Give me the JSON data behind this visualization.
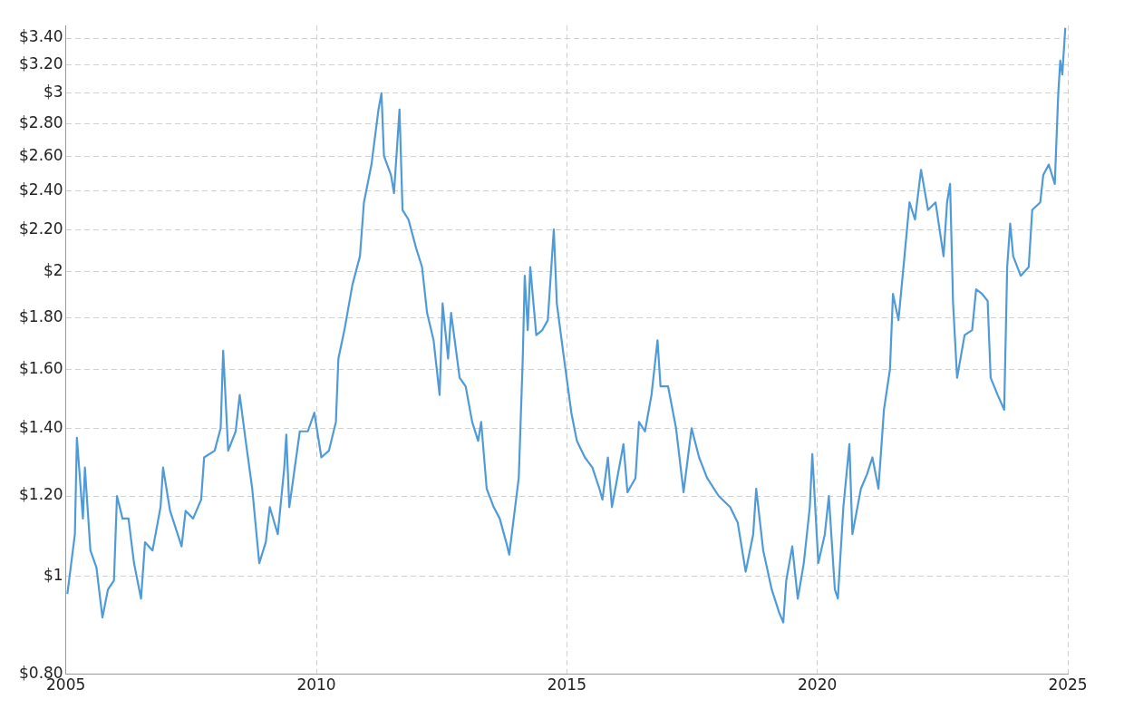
{
  "chart_data": {
    "type": "line",
    "log": "y",
    "grid": true,
    "legend": false,
    "marker": "none",
    "line_style": "solid",
    "xlim": [
      2005,
      2025
    ],
    "xticks": [
      2005,
      2010,
      2015,
      2020,
      2025
    ],
    "ylim": [
      0.8,
      3.5
    ],
    "yticks": [
      {
        "value": 0.8,
        "label": "$0.80"
      },
      {
        "value": 1,
        "label": "$1"
      },
      {
        "value": 1.2,
        "label": "$1.20"
      },
      {
        "value": 1.4,
        "label": "$1.40"
      },
      {
        "value": 1.6,
        "label": "$1.60"
      },
      {
        "value": 1.8,
        "label": "$1.80"
      },
      {
        "value": 2,
        "label": "$2"
      },
      {
        "value": 2.2,
        "label": "$2.20"
      },
      {
        "value": 2.4,
        "label": "$2.40"
      },
      {
        "value": 2.6,
        "label": "$2.60"
      },
      {
        "value": 2.8,
        "label": "$2.80"
      },
      {
        "value": 3,
        "label": "$3"
      },
      {
        "value": 3.2,
        "label": "$3.20"
      },
      {
        "value": 3.4,
        "label": "$3.40"
      }
    ],
    "series": [
      {
        "color": "#4f9ad8",
        "x": [
          2005.03,
          2005.18,
          2005.22,
          2005.34,
          2005.38,
          2005.49,
          2005.61,
          2005.73,
          2005.84,
          2005.96,
          2006.02,
          2006.13,
          2006.25,
          2006.36,
          2006.5,
          2006.58,
          2006.73,
          2006.89,
          2006.94,
          2007.08,
          2007.31,
          2007.39,
          2007.54,
          2007.7,
          2007.76,
          2007.97,
          2008.09,
          2008.14,
          2008.24,
          2008.39,
          2008.47,
          2008.59,
          2008.72,
          2008.86,
          2008.99,
          2009.07,
          2009.23,
          2009.36,
          2009.4,
          2009.46,
          2009.67,
          2009.83,
          2009.96,
          2010.1,
          2010.25,
          2010.39,
          2010.44,
          2010.56,
          2010.72,
          2010.87,
          2010.95,
          2011.1,
          2011.24,
          2011.3,
          2011.35,
          2011.49,
          2011.55,
          2011.66,
          2011.72,
          2011.84,
          2011.99,
          2012.11,
          2012.21,
          2012.34,
          2012.46,
          2012.52,
          2012.63,
          2012.69,
          2012.86,
          2012.98,
          2013.11,
          2013.23,
          2013.29,
          2013.4,
          2013.54,
          2013.66,
          2013.79,
          2013.85,
          2013.93,
          2014.04,
          2014.12,
          2014.16,
          2014.22,
          2014.27,
          2014.39,
          2014.51,
          2014.62,
          2014.74,
          2014.8,
          2014.93,
          2015.09,
          2015.2,
          2015.36,
          2015.51,
          2015.65,
          2015.71,
          2015.82,
          2015.9,
          2016.13,
          2016.21,
          2016.37,
          2016.44,
          2016.56,
          2016.69,
          2016.81,
          2016.87,
          2017.02,
          2017.18,
          2017.33,
          2017.49,
          2017.64,
          2017.8,
          2018.03,
          2018.26,
          2018.41,
          2018.57,
          2018.72,
          2018.78,
          2018.92,
          2019.09,
          2019.24,
          2019.32,
          2019.38,
          2019.5,
          2019.61,
          2019.73,
          2019.85,
          2019.9,
          2020.02,
          2020.15,
          2020.23,
          2020.35,
          2020.41,
          2020.52,
          2020.64,
          2020.7,
          2020.87,
          2020.99,
          2021.1,
          2021.22,
          2021.33,
          2021.45,
          2021.51,
          2021.62,
          2021.74,
          2021.84,
          2021.95,
          2022.07,
          2022.21,
          2022.36,
          2022.52,
          2022.59,
          2022.65,
          2022.71,
          2022.79,
          2022.94,
          2023.09,
          2023.17,
          2023.29,
          2023.4,
          2023.46,
          2023.6,
          2023.73,
          2023.79,
          2023.85,
          2023.91,
          2024.06,
          2024.22,
          2024.29,
          2024.45,
          2024.51,
          2024.62,
          2024.74,
          2024.81,
          2024.85,
          2024.89,
          2024.95
        ],
        "values": [
          0.96,
          1.1,
          1.37,
          1.14,
          1.28,
          1.06,
          1.02,
          0.91,
          0.97,
          0.99,
          1.2,
          1.14,
          1.14,
          1.03,
          0.95,
          1.08,
          1.06,
          1.17,
          1.28,
          1.16,
          1.07,
          1.16,
          1.14,
          1.19,
          1.31,
          1.33,
          1.4,
          1.67,
          1.33,
          1.39,
          1.51,
          1.36,
          1.22,
          1.03,
          1.08,
          1.17,
          1.1,
          1.28,
          1.38,
          1.17,
          1.39,
          1.39,
          1.45,
          1.31,
          1.33,
          1.42,
          1.64,
          1.75,
          1.94,
          2.07,
          2.34,
          2.55,
          2.89,
          3,
          2.6,
          2.49,
          2.39,
          2.89,
          2.3,
          2.25,
          2.11,
          2.02,
          1.82,
          1.71,
          1.51,
          1.86,
          1.64,
          1.82,
          1.57,
          1.54,
          1.42,
          1.36,
          1.42,
          1.22,
          1.17,
          1.14,
          1.08,
          1.05,
          1.13,
          1.25,
          1.64,
          1.98,
          1.75,
          2.02,
          1.73,
          1.75,
          1.79,
          2.2,
          1.86,
          1.66,
          1.45,
          1.36,
          1.31,
          1.28,
          1.22,
          1.19,
          1.31,
          1.17,
          1.35,
          1.21,
          1.25,
          1.42,
          1.39,
          1.51,
          1.71,
          1.54,
          1.54,
          1.4,
          1.21,
          1.4,
          1.31,
          1.25,
          1.2,
          1.17,
          1.13,
          1.01,
          1.1,
          1.22,
          1.06,
          0.97,
          0.92,
          0.9,
          0.99,
          1.07,
          0.95,
          1.03,
          1.17,
          1.32,
          1.03,
          1.1,
          1.2,
          0.97,
          0.95,
          1.17,
          1.35,
          1.1,
          1.22,
          1.26,
          1.31,
          1.22,
          1.46,
          1.6,
          1.9,
          1.79,
          2.07,
          2.34,
          2.25,
          2.52,
          2.3,
          2.34,
          2.07,
          2.34,
          2.44,
          1.86,
          1.57,
          1.73,
          1.75,
          1.92,
          1.9,
          1.87,
          1.57,
          1.51,
          1.46,
          2.02,
          2.23,
          2.07,
          1.98,
          2.02,
          2.3,
          2.34,
          2.49,
          2.55,
          2.44,
          3,
          3.23,
          3.13,
          3.48
        ]
      }
    ]
  }
}
